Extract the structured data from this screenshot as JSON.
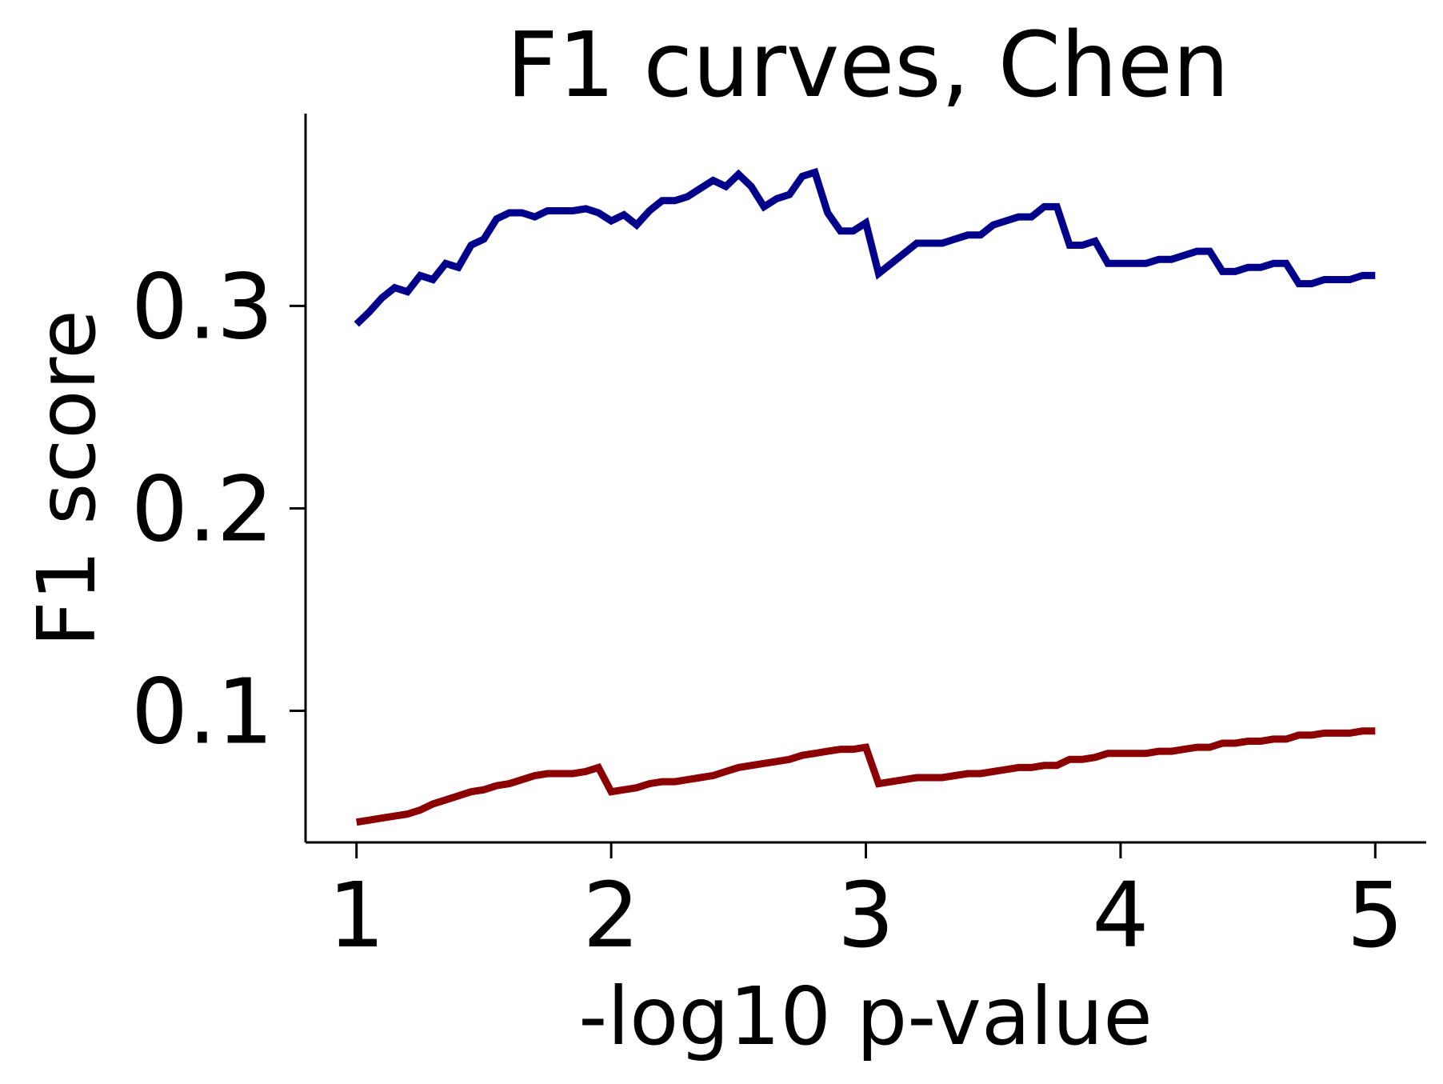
{
  "chart_data": {
    "type": "line",
    "title": "F1 curves, Chen",
    "xlabel": "-log10 p-value",
    "ylabel": "F1 score",
    "xlim": [
      0.8,
      5.2
    ],
    "ylim": [
      0.035,
      0.395
    ],
    "xticks": [
      1,
      2,
      3,
      4,
      5
    ],
    "xtick_labels": [
      "1",
      "2",
      "3",
      "4",
      "5"
    ],
    "yticks": [
      0.1,
      0.2,
      0.3
    ],
    "ytick_labels": [
      "0.1",
      "0.2",
      "0.3"
    ],
    "grid": false,
    "legend": "none",
    "series": [
      {
        "color": "#00008b",
        "x": [
          1.0,
          1.05,
          1.1,
          1.15,
          1.2,
          1.25,
          1.3,
          1.35,
          1.4,
          1.45,
          1.5,
          1.55,
          1.6,
          1.65,
          1.7,
          1.75,
          1.8,
          1.85,
          1.9,
          1.95,
          2.0,
          2.05,
          2.1,
          2.15,
          2.2,
          2.25,
          2.3,
          2.35,
          2.4,
          2.45,
          2.5,
          2.55,
          2.6,
          2.65,
          2.7,
          2.75,
          2.8,
          2.85,
          2.9,
          2.95,
          3.0,
          3.05,
          3.1,
          3.15,
          3.2,
          3.25,
          3.3,
          3.35,
          3.4,
          3.45,
          3.5,
          3.55,
          3.6,
          3.65,
          3.7,
          3.75,
          3.8,
          3.85,
          3.9,
          3.95,
          4.0,
          4.05,
          4.1,
          4.15,
          4.2,
          4.25,
          4.3,
          4.35,
          4.4,
          4.45,
          4.5,
          4.55,
          4.6,
          4.65,
          4.7,
          4.75,
          4.8,
          4.85,
          4.9,
          4.95,
          5.0
        ],
        "y": [
          0.291,
          0.297,
          0.304,
          0.309,
          0.307,
          0.315,
          0.313,
          0.321,
          0.319,
          0.33,
          0.333,
          0.343,
          0.346,
          0.346,
          0.344,
          0.347,
          0.347,
          0.347,
          0.348,
          0.346,
          0.342,
          0.345,
          0.34,
          0.347,
          0.352,
          0.352,
          0.354,
          0.358,
          0.362,
          0.359,
          0.365,
          0.359,
          0.349,
          0.353,
          0.355,
          0.364,
          0.366,
          0.346,
          0.337,
          0.337,
          0.341,
          0.316,
          0.321,
          0.326,
          0.331,
          0.331,
          0.331,
          0.333,
          0.335,
          0.335,
          0.34,
          0.342,
          0.344,
          0.344,
          0.349,
          0.349,
          0.33,
          0.33,
          0.332,
          0.321,
          0.321,
          0.321,
          0.321,
          0.323,
          0.323,
          0.325,
          0.327,
          0.327,
          0.317,
          0.317,
          0.319,
          0.319,
          0.321,
          0.321,
          0.311,
          0.311,
          0.313,
          0.313,
          0.313,
          0.315,
          0.315
        ]
      },
      {
        "color": "#8b0000",
        "x": [
          1.0,
          1.05,
          1.1,
          1.15,
          1.2,
          1.25,
          1.3,
          1.35,
          1.4,
          1.45,
          1.5,
          1.55,
          1.6,
          1.65,
          1.7,
          1.75,
          1.8,
          1.85,
          1.9,
          1.95,
          2.0,
          2.05,
          2.1,
          2.15,
          2.2,
          2.25,
          2.3,
          2.35,
          2.4,
          2.45,
          2.5,
          2.55,
          2.6,
          2.65,
          2.7,
          2.75,
          2.8,
          2.85,
          2.9,
          2.95,
          3.0,
          3.05,
          3.1,
          3.15,
          3.2,
          3.25,
          3.3,
          3.35,
          3.4,
          3.45,
          3.5,
          3.55,
          3.6,
          3.65,
          3.7,
          3.75,
          3.8,
          3.85,
          3.9,
          3.95,
          4.0,
          4.05,
          4.1,
          4.15,
          4.2,
          4.25,
          4.3,
          4.35,
          4.4,
          4.45,
          4.5,
          4.55,
          4.6,
          4.65,
          4.7,
          4.75,
          4.8,
          4.85,
          4.9,
          4.95,
          5.0
        ],
        "y": [
          0.045,
          0.046,
          0.047,
          0.048,
          0.049,
          0.051,
          0.054,
          0.056,
          0.058,
          0.06,
          0.061,
          0.063,
          0.064,
          0.066,
          0.068,
          0.069,
          0.069,
          0.069,
          0.07,
          0.072,
          0.06,
          0.061,
          0.062,
          0.064,
          0.065,
          0.065,
          0.066,
          0.067,
          0.068,
          0.07,
          0.072,
          0.073,
          0.074,
          0.075,
          0.076,
          0.078,
          0.079,
          0.08,
          0.081,
          0.081,
          0.082,
          0.064,
          0.065,
          0.066,
          0.067,
          0.067,
          0.067,
          0.068,
          0.069,
          0.069,
          0.07,
          0.071,
          0.072,
          0.072,
          0.073,
          0.073,
          0.076,
          0.076,
          0.077,
          0.079,
          0.079,
          0.079,
          0.079,
          0.08,
          0.08,
          0.081,
          0.082,
          0.082,
          0.084,
          0.084,
          0.085,
          0.085,
          0.086,
          0.086,
          0.088,
          0.088,
          0.089,
          0.089,
          0.089,
          0.09,
          0.09
        ]
      }
    ]
  }
}
